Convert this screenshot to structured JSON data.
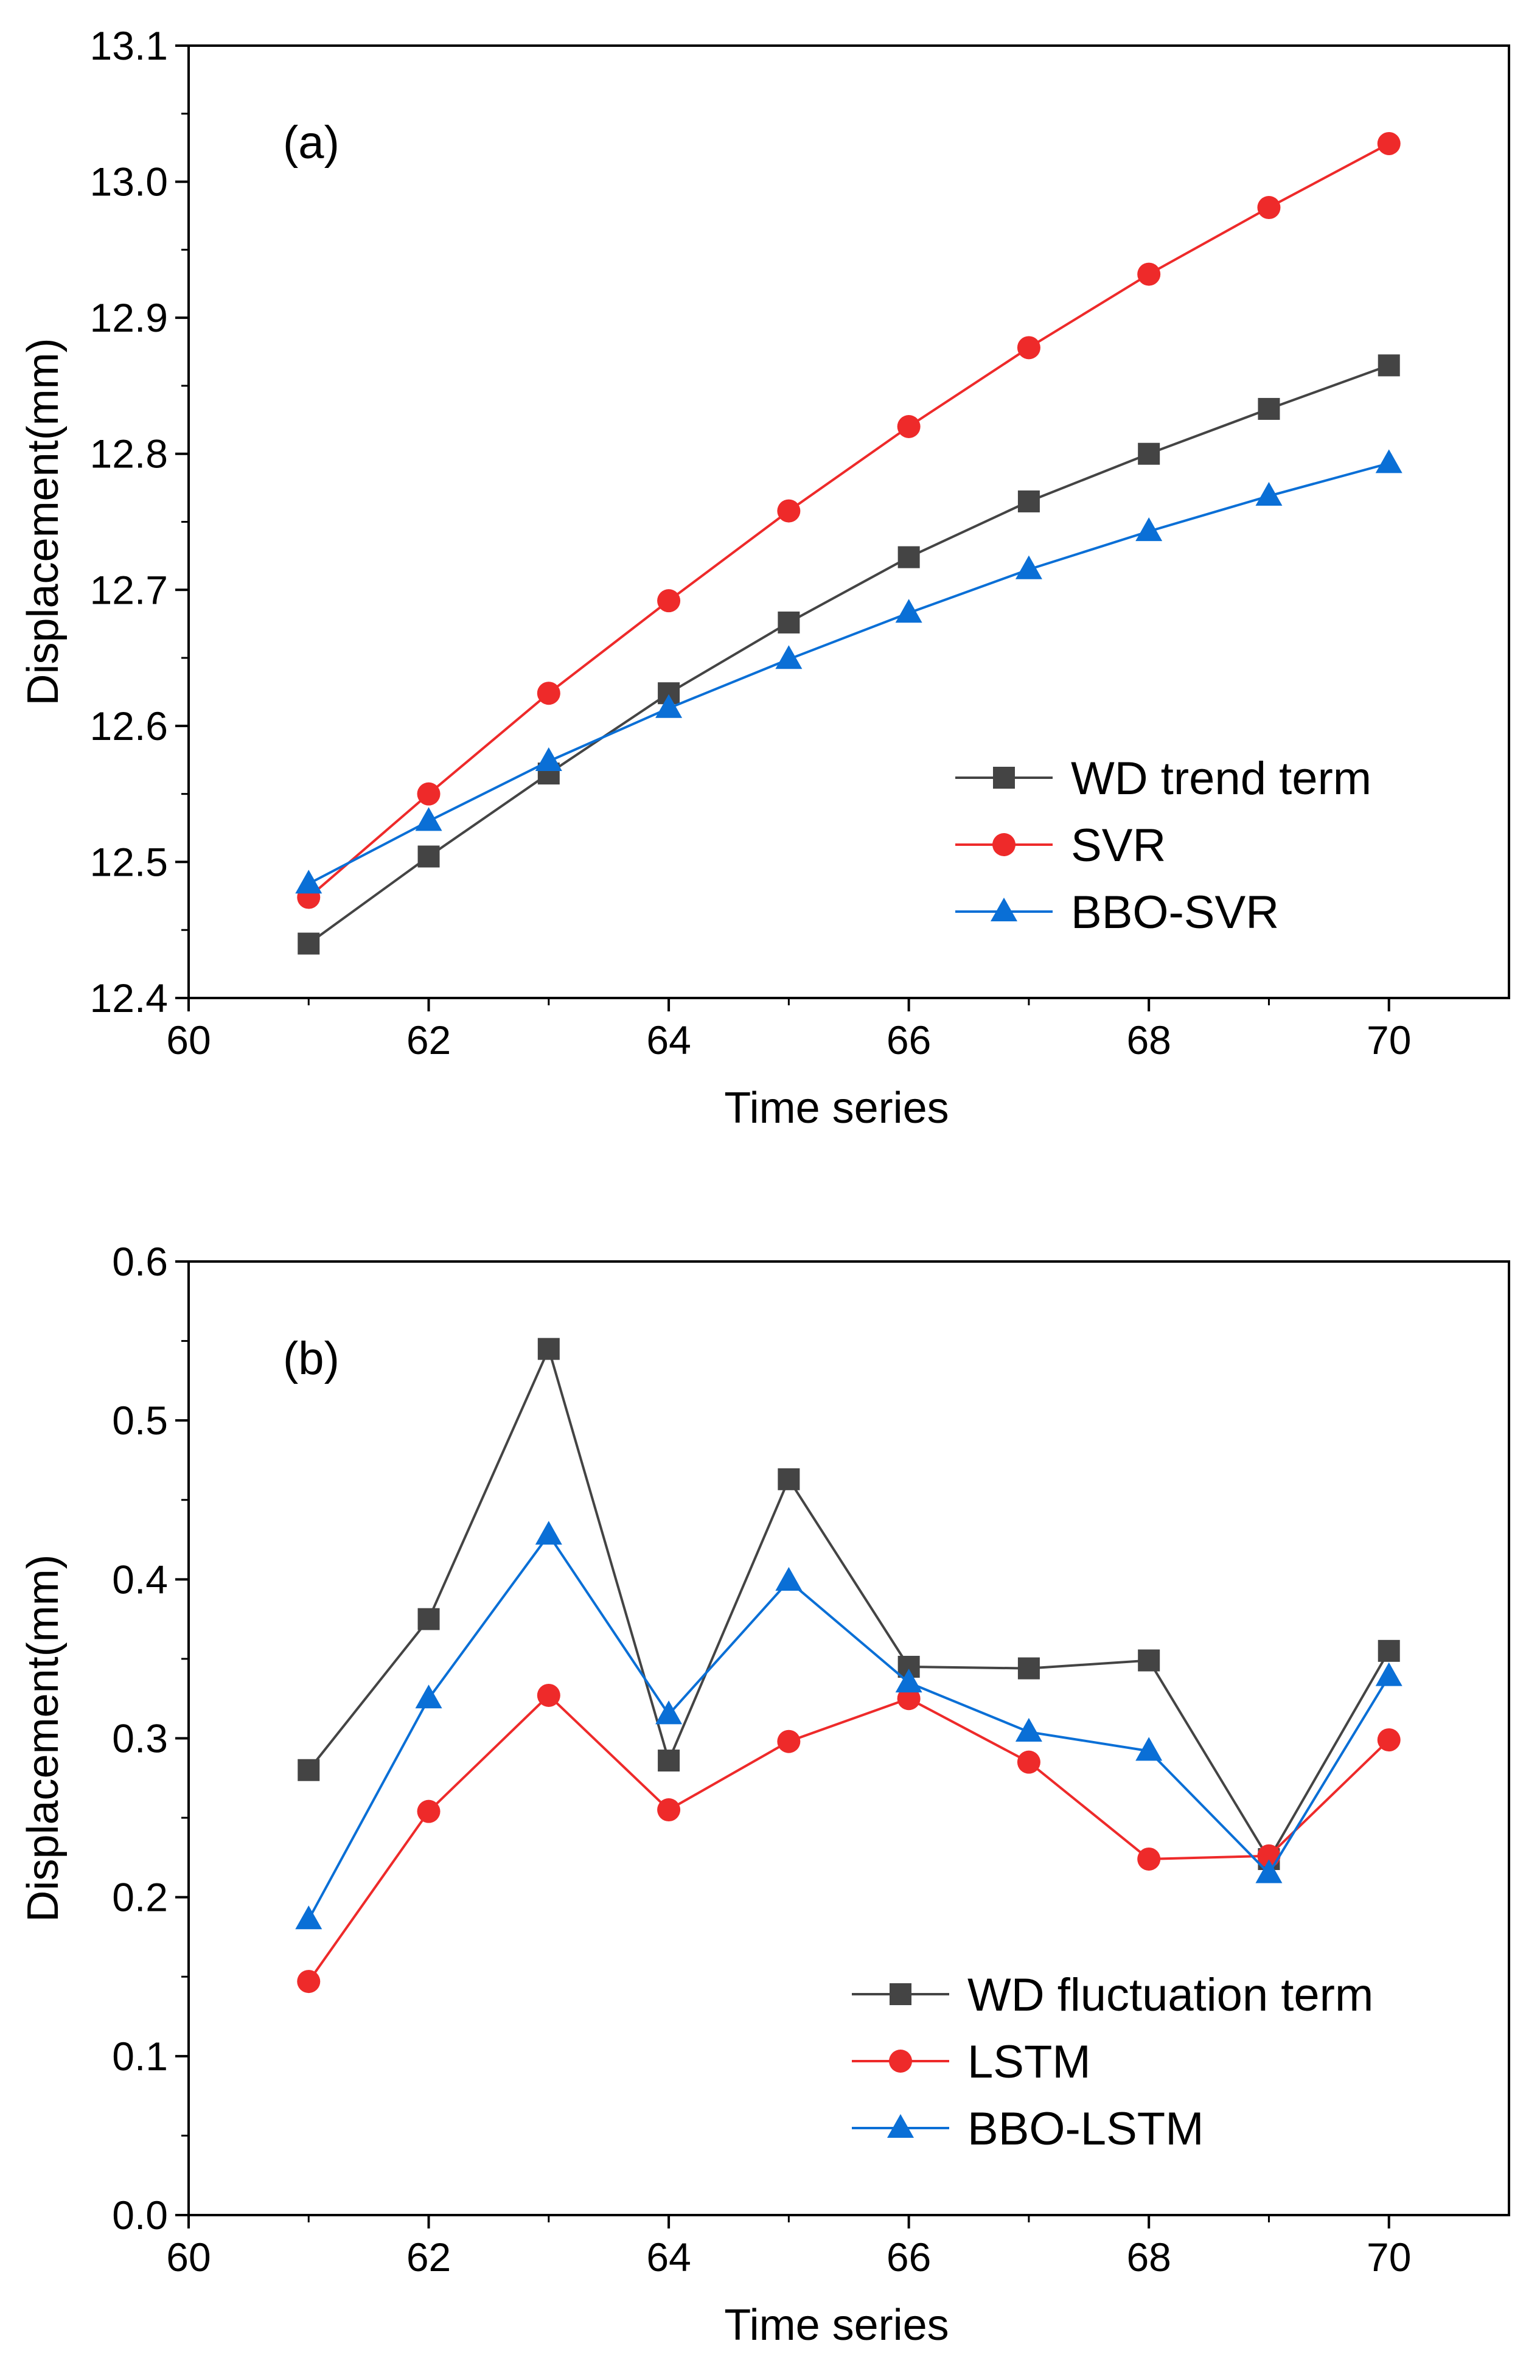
{
  "chart_data": [
    {
      "type": "line",
      "panel_label": "(a)",
      "xlabel": "Time series",
      "ylabel": "Displacement(mm)",
      "xlim": [
        60,
        71
      ],
      "ylim": [
        12.4,
        13.1
      ],
      "xticks": [
        60,
        62,
        64,
        66,
        68,
        70
      ],
      "xtick_labels": [
        "60",
        "62",
        "64",
        "66",
        "68",
        "70"
      ],
      "yticks": [
        12.4,
        12.5,
        12.6,
        12.7,
        12.8,
        12.9,
        13.0,
        13.1
      ],
      "ytick_labels": [
        "12.4",
        "12.5",
        "12.6",
        "12.7",
        "12.8",
        "12.9",
        "13.0",
        "13.1"
      ],
      "x": [
        61,
        62,
        63,
        64,
        65,
        66,
        67,
        68,
        69,
        70
      ],
      "legend_position": "bottom-right",
      "series": [
        {
          "name": "WD trend term",
          "marker": "square",
          "color": "#444444",
          "values": [
            12.44,
            12.504,
            12.565,
            12.624,
            12.676,
            12.724,
            12.765,
            12.8,
            12.833,
            12.865
          ]
        },
        {
          "name": "SVR",
          "marker": "circle",
          "color": "#ee2a2a",
          "values": [
            12.474,
            12.55,
            12.624,
            12.692,
            12.758,
            12.82,
            12.878,
            12.932,
            12.981,
            13.028
          ]
        },
        {
          "name": "BBO-SVR",
          "marker": "triangle",
          "color": "#0a6fd6",
          "values": [
            12.484,
            12.53,
            12.574,
            12.613,
            12.649,
            12.683,
            12.715,
            12.743,
            12.769,
            12.793
          ]
        }
      ]
    },
    {
      "type": "line",
      "panel_label": "(b)",
      "xlabel": "Time series",
      "ylabel": "Displacement(mm)",
      "xlim": [
        60,
        71
      ],
      "ylim": [
        0.0,
        0.6
      ],
      "xticks": [
        60,
        62,
        64,
        66,
        68,
        70
      ],
      "xtick_labels": [
        "60",
        "62",
        "64",
        "66",
        "68",
        "70"
      ],
      "yticks": [
        0.0,
        0.1,
        0.2,
        0.3,
        0.4,
        0.5,
        0.6
      ],
      "ytick_labels": [
        "0.0",
        "0.1",
        "0.2",
        "0.3",
        "0.4",
        "0.5",
        "0.6"
      ],
      "x": [
        61,
        62,
        63,
        64,
        65,
        66,
        67,
        68,
        69,
        70
      ],
      "legend_position": "bottom-right",
      "series": [
        {
          "name": "WD fluctuation term",
          "marker": "square",
          "color": "#444444",
          "values": [
            0.28,
            0.375,
            0.545,
            0.286,
            0.463,
            0.345,
            0.344,
            0.349,
            0.224,
            0.355
          ]
        },
        {
          "name": "LSTM",
          "marker": "circle",
          "color": "#ee2a2a",
          "values": [
            0.147,
            0.254,
            0.327,
            0.255,
            0.298,
            0.325,
            0.285,
            0.224,
            0.226,
            0.299
          ]
        },
        {
          "name": "BBO-LSTM",
          "marker": "triangle",
          "color": "#0a6fd6",
          "values": [
            0.186,
            0.325,
            0.428,
            0.315,
            0.399,
            0.335,
            0.304,
            0.292,
            0.215,
            0.339
          ]
        }
      ]
    }
  ]
}
